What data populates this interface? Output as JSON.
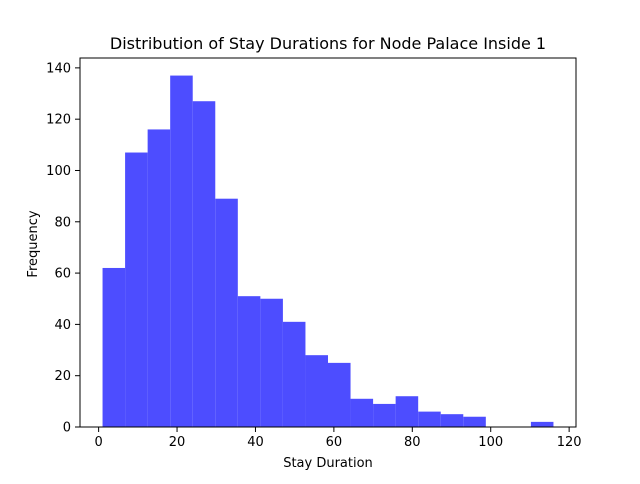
{
  "chart_data": {
    "type": "bar",
    "title": "Distribution of Stay Durations for Node Palace Inside 1",
    "xlabel": "Stay Duration",
    "ylabel": "Frequency",
    "xlim": [
      -4.75,
      121.75
    ],
    "ylim": [
      0,
      143.85
    ],
    "xticks": [
      0,
      20,
      40,
      60,
      80,
      100,
      120
    ],
    "yticks": [
      0,
      20,
      40,
      60,
      80,
      100,
      120,
      140
    ],
    "grid": false,
    "bar_color": "#4d4dff",
    "bins": [
      {
        "x0": 1.0,
        "x1": 6.75,
        "value": 62
      },
      {
        "x0": 6.75,
        "x1": 12.5,
        "value": 107
      },
      {
        "x0": 12.5,
        "x1": 18.25,
        "value": 116
      },
      {
        "x0": 18.25,
        "x1": 24.0,
        "value": 137
      },
      {
        "x0": 24.0,
        "x1": 29.75,
        "value": 127
      },
      {
        "x0": 29.75,
        "x1": 35.5,
        "value": 89
      },
      {
        "x0": 35.5,
        "x1": 41.25,
        "value": 51
      },
      {
        "x0": 41.25,
        "x1": 47.0,
        "value": 50
      },
      {
        "x0": 47.0,
        "x1": 52.75,
        "value": 41
      },
      {
        "x0": 52.75,
        "x1": 58.5,
        "value": 28
      },
      {
        "x0": 58.5,
        "x1": 64.25,
        "value": 25
      },
      {
        "x0": 64.25,
        "x1": 70.0,
        "value": 11
      },
      {
        "x0": 70.0,
        "x1": 75.75,
        "value": 9
      },
      {
        "x0": 75.75,
        "x1": 81.5,
        "value": 12
      },
      {
        "x0": 81.5,
        "x1": 87.25,
        "value": 6
      },
      {
        "x0": 87.25,
        "x1": 93.0,
        "value": 5
      },
      {
        "x0": 93.0,
        "x1": 98.75,
        "value": 4
      },
      {
        "x0": 98.75,
        "x1": 104.5,
        "value": 0
      },
      {
        "x0": 104.5,
        "x1": 110.25,
        "value": 0
      },
      {
        "x0": 110.25,
        "x1": 116.0,
        "value": 2
      }
    ]
  }
}
